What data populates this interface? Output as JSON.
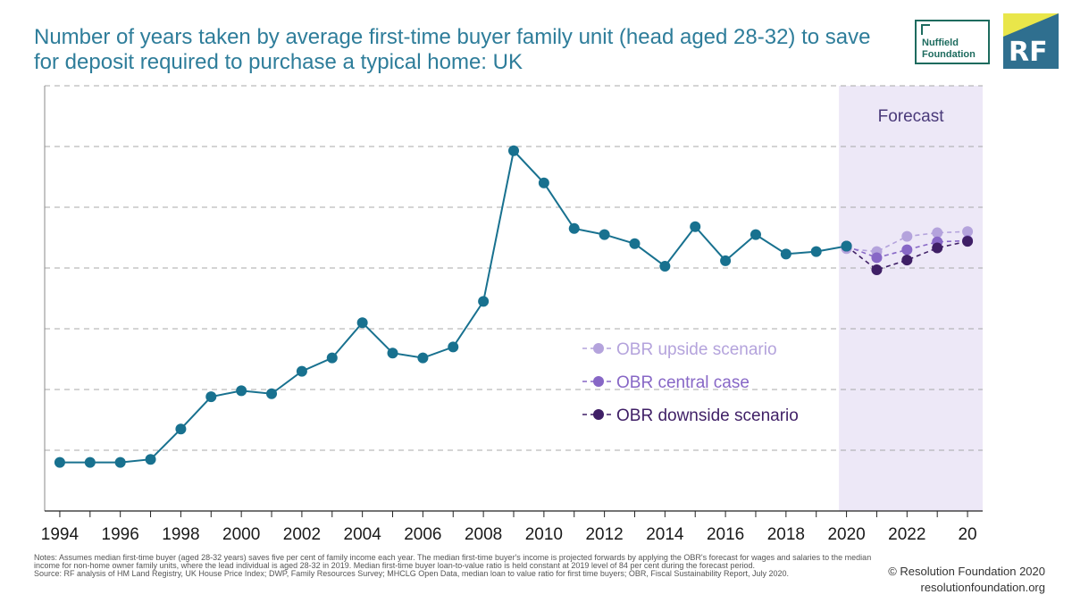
{
  "title": "Number of years taken by average first-time buyer family unit (head aged 28-32) to save for deposit required to purchase a typical home: UK",
  "logos": {
    "nuffield_line1": "Nuffield",
    "nuffield_line2": "Foundation",
    "rf": "RF"
  },
  "footer": {
    "notes": "Notes: Assumes median first-time buyer (aged 28-32 years) saves five per cent of family income each year. The median first-time buyer's income is projected forwards by applying the OBR's forecast for wages and salaries to the median income for non-home owner family units, where the lead individual is aged 28-32 in 2019. Median first-time buyer loan-to-value ratio is held constant at 2019 level of 84 per cent during the forecast period.",
    "source": "Source: RF analysis of HM Land Registry, UK House Price Index; DWP, Family Resources Survey; MHCLG Open Data, median loan to value ratio for first time buyers; OBR, Fiscal Sustainability Report, July 2020.",
    "copyright": "© Resolution Foundation 2020",
    "website": "resolutionfoundation.org"
  },
  "chart_data": {
    "type": "line",
    "title": "Number of years taken by average first-time buyer family unit (head aged 28-32) to save for deposit required to purchase a typical home: UK",
    "xlabel": "",
    "ylabel": "",
    "xlim": [
      1993.5,
      2024.5
    ],
    "ylim": [
      0,
      7
    ],
    "y_gridlines": [
      1,
      2,
      3,
      4,
      5,
      6,
      7
    ],
    "grid": true,
    "x_ticks": [
      1994,
      1995,
      1996,
      1997,
      1998,
      1999,
      2000,
      2001,
      2002,
      2003,
      2004,
      2005,
      2006,
      2007,
      2008,
      2009,
      2010,
      2011,
      2012,
      2013,
      2014,
      2015,
      2016,
      2017,
      2018,
      2019,
      2020,
      2021,
      2022,
      2023,
      2024
    ],
    "x_tick_labels": [
      {
        "x": 1994,
        "label": "1994"
      },
      {
        "x": 1996,
        "label": "1996"
      },
      {
        "x": 1998,
        "label": "1998"
      },
      {
        "x": 2000,
        "label": "2000"
      },
      {
        "x": 2002,
        "label": "2002"
      },
      {
        "x": 2004,
        "label": "2004"
      },
      {
        "x": 2006,
        "label": "2006"
      },
      {
        "x": 2008,
        "label": "2008"
      },
      {
        "x": 2010,
        "label": "2010"
      },
      {
        "x": 2012,
        "label": "2012"
      },
      {
        "x": 2014,
        "label": "2014"
      },
      {
        "x": 2016,
        "label": "2016"
      },
      {
        "x": 2018,
        "label": "2018"
      },
      {
        "x": 2020,
        "label": "2020"
      },
      {
        "x": 2022,
        "label": "2022"
      },
      {
        "x": 2024,
        "label": "20"
      }
    ],
    "forecast_region": {
      "from": 2019.75,
      "to": 2024.5,
      "label": "Forecast"
    },
    "series": [
      {
        "name": "",
        "style": "solid",
        "color": "#18718f",
        "points": [
          [
            1994,
            0.8
          ],
          [
            1995,
            0.8
          ],
          [
            1996,
            0.8
          ],
          [
            1997,
            0.85
          ],
          [
            1998,
            1.35
          ],
          [
            1999,
            1.88
          ],
          [
            2000,
            1.98
          ],
          [
            2001,
            1.93
          ],
          [
            2002,
            2.3
          ],
          [
            2003,
            2.52
          ],
          [
            2004,
            3.1
          ],
          [
            2005,
            2.6
          ],
          [
            2006,
            2.52
          ],
          [
            2007,
            2.7
          ],
          [
            2008,
            3.45
          ],
          [
            2009,
            5.93
          ],
          [
            2010,
            5.4
          ],
          [
            2011,
            4.65
          ],
          [
            2012,
            4.55
          ],
          [
            2013,
            4.4
          ],
          [
            2014,
            4.03
          ],
          [
            2015,
            4.68
          ],
          [
            2016,
            4.12
          ],
          [
            2017,
            4.55
          ],
          [
            2018,
            4.23
          ],
          [
            2019,
            4.27
          ],
          [
            2020,
            4.36
          ]
        ]
      },
      {
        "name": "OBR upside scenario",
        "style": "dashed",
        "color": "#b4a3dc",
        "points": [
          [
            2020,
            4.32
          ],
          [
            2021,
            4.27
          ],
          [
            2022,
            4.52
          ],
          [
            2023,
            4.58
          ],
          [
            2024,
            4.6
          ]
        ]
      },
      {
        "name": "OBR central case",
        "style": "dashed",
        "color": "#8767c6",
        "points": [
          [
            2020,
            4.36
          ],
          [
            2021,
            4.17
          ],
          [
            2022,
            4.3
          ],
          [
            2023,
            4.43
          ],
          [
            2024,
            4.45
          ]
        ]
      },
      {
        "name": "OBR downside scenario",
        "style": "dashed",
        "color": "#3f1f66",
        "points": [
          [
            2020,
            4.36
          ],
          [
            2021,
            3.97
          ],
          [
            2022,
            4.13
          ],
          [
            2023,
            4.33
          ],
          [
            2024,
            4.44
          ]
        ]
      }
    ],
    "legend": {
      "placement": "center-right",
      "entries": [
        {
          "label": "OBR upside scenario",
          "color": "#b4a3dc"
        },
        {
          "label": "OBR central case",
          "color": "#8767c6"
        },
        {
          "label": "OBR downside scenario",
          "color": "#3f1f66"
        }
      ]
    }
  }
}
